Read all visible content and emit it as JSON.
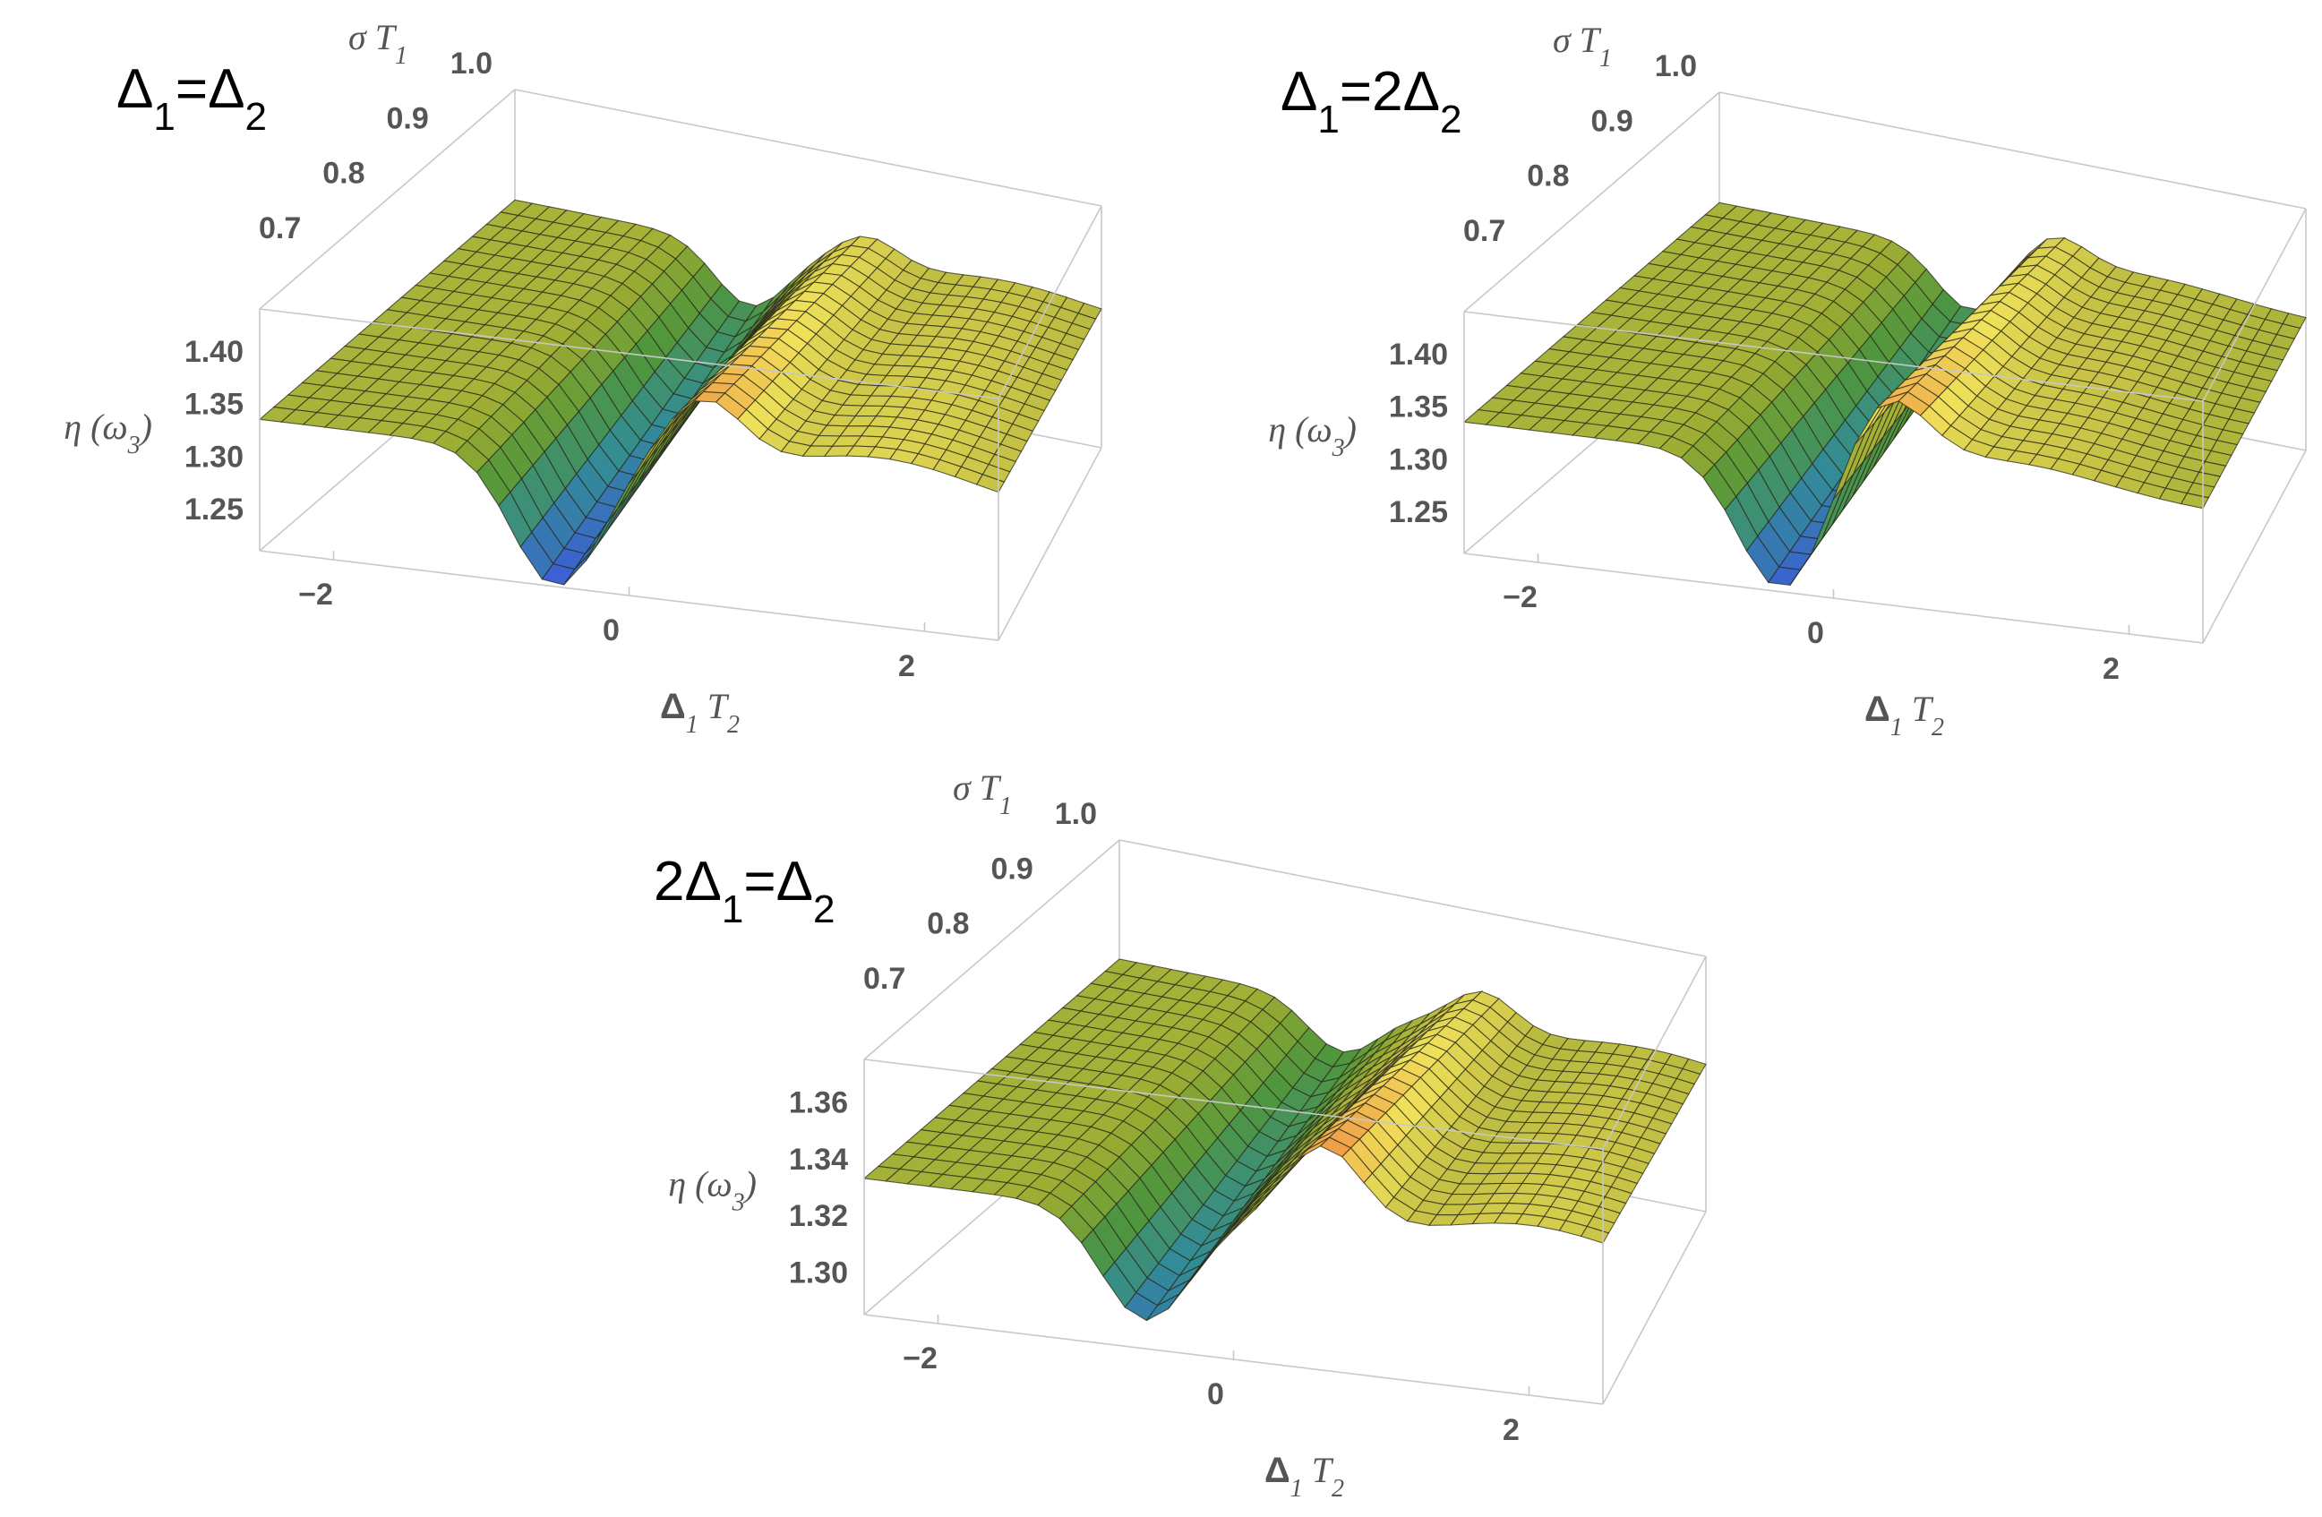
{
  "chart_data": [
    {
      "type": "surface3d",
      "title": "Δ1=Δ2",
      "x": {
        "label": "Δ1 T2",
        "ticks": [
          "−2",
          "0",
          "2"
        ],
        "range": [
          -2.5,
          2.5
        ]
      },
      "y": {
        "label": "σ T1",
        "ticks": [
          "0.7",
          "0.8",
          "0.9",
          "1.0"
        ],
        "range": [
          0.6,
          1.0
        ]
      },
      "z": {
        "label": "η (ω3)",
        "ticks": [
          "1.25",
          "1.30",
          "1.35",
          "1.40"
        ],
        "range": [
          1.21,
          1.44
        ]
      },
      "surface": {
        "plateau": 1.335,
        "min": {
          "x": -0.5,
          "z": 1.21
        },
        "max": {
          "x": 0.5,
          "z": 1.4
        },
        "shoulder": {
          "x": 1.7,
          "z": 1.37
        }
      }
    },
    {
      "type": "surface3d",
      "title": "Δ1=2Δ2",
      "x": {
        "label": "Δ1 T2",
        "ticks": [
          "−2",
          "0",
          "2"
        ],
        "range": [
          -2.5,
          2.5
        ]
      },
      "y": {
        "label": "σ T1",
        "ticks": [
          "0.7",
          "0.8",
          "0.9",
          "1.0"
        ],
        "range": [
          0.6,
          1.0
        ]
      },
      "z": {
        "label": "η (ω3)",
        "ticks": [
          "1.25",
          "1.30",
          "1.35",
          "1.40"
        ],
        "range": [
          1.21,
          1.44
        ]
      },
      "surface": {
        "plateau": 1.335,
        "min": {
          "x": -0.35,
          "z": 1.21
        },
        "max": {
          "x": 0.35,
          "z": 1.4
        },
        "shoulder": {
          "x": 1.2,
          "z": 1.36
        }
      }
    },
    {
      "type": "surface3d",
      "title": "2Δ1=Δ2",
      "x": {
        "label": "Δ1 T2",
        "ticks": [
          "−2",
          "0",
          "2"
        ],
        "range": [
          -2.5,
          2.5
        ]
      },
      "y": {
        "label": "σ T1",
        "ticks": [
          "0.7",
          "0.8",
          "0.9",
          "1.0"
        ],
        "range": [
          0.6,
          1.0
        ]
      },
      "z": {
        "label": "η (ω3)",
        "ticks": [
          "1.30",
          "1.32",
          "1.34",
          "1.36"
        ],
        "range": [
          1.285,
          1.375
        ]
      },
      "surface": {
        "plateau": 1.333,
        "min": {
          "x": -0.6,
          "z": 1.295
        },
        "max": {
          "x": 0.6,
          "z": 1.363
        },
        "shoulder": {
          "x": 2.0,
          "z": 1.345
        }
      }
    }
  ]
}
